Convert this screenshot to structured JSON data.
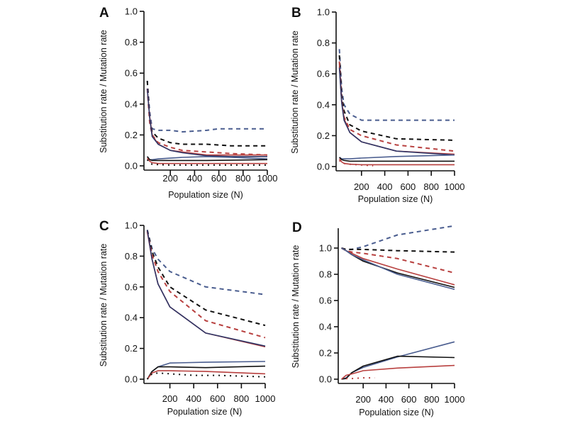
{
  "colors": {
    "blue": "#4a5d8f",
    "black": "#111111",
    "red": "#b8403f",
    "navy": "#2e3566"
  },
  "chart_data": [
    {
      "type": "line",
      "panel": "A",
      "xlabel": "Population size (N)",
      "ylabel": "Substitution rate / Mutation rate",
      "xlim": [
        0,
        1000
      ],
      "ylim": [
        0,
        1.0
      ],
      "xticks": [
        "200",
        "400",
        "600",
        "800",
        "1000"
      ],
      "yticks": [
        "0.0",
        "0.2",
        "0.4",
        "0.6",
        "0.8",
        "1.0"
      ],
      "series": [
        {
          "name": "blue-dashed",
          "color": "blue",
          "style": "dashed",
          "x": [
            10,
            30,
            50,
            100,
            200,
            300,
            500,
            600,
            1000
          ],
          "y": [
            0.55,
            0.35,
            0.24,
            0.23,
            0.23,
            0.22,
            0.23,
            0.24,
            0.24
          ]
        },
        {
          "name": "black-dashed",
          "color": "black",
          "style": "dashed",
          "x": [
            10,
            30,
            50,
            100,
            200,
            300,
            500,
            700,
            1000
          ],
          "y": [
            0.55,
            0.3,
            0.22,
            0.18,
            0.15,
            0.14,
            0.14,
            0.13,
            0.13
          ]
        },
        {
          "name": "red-dashed",
          "color": "red",
          "style": "dashed",
          "x": [
            10,
            30,
            50,
            100,
            200,
            300,
            500,
            700,
            1000
          ],
          "y": [
            0.5,
            0.28,
            0.2,
            0.15,
            0.12,
            0.1,
            0.09,
            0.08,
            0.07
          ]
        },
        {
          "name": "red-solid-upper",
          "color": "red",
          "style": "solid",
          "x": [
            10,
            30,
            50,
            100,
            200,
            300,
            500,
            700,
            1000
          ],
          "y": [
            0.5,
            0.32,
            0.2,
            0.14,
            0.1,
            0.09,
            0.07,
            0.07,
            0.07
          ]
        },
        {
          "name": "navy-solid-upper",
          "color": "navy",
          "style": "solid",
          "x": [
            10,
            30,
            50,
            100,
            200,
            300,
            500,
            700,
            1000
          ],
          "y": [
            0.5,
            0.31,
            0.19,
            0.14,
            0.1,
            0.085,
            0.065,
            0.06,
            0.06
          ]
        },
        {
          "name": "blue-solid-lower",
          "color": "blue",
          "style": "solid",
          "x": [
            10,
            30,
            50,
            100,
            200,
            300,
            500,
            700,
            1000
          ],
          "y": [
            0.06,
            0.04,
            0.04,
            0.045,
            0.05,
            0.055,
            0.06,
            0.055,
            0.045
          ]
        },
        {
          "name": "black-solid-lower",
          "color": "black",
          "style": "solid",
          "x": [
            10,
            30,
            50,
            100,
            200,
            500,
            1000
          ],
          "y": [
            0.06,
            0.04,
            0.035,
            0.035,
            0.035,
            0.035,
            0.04
          ]
        },
        {
          "name": "red-solid-lower",
          "color": "red",
          "style": "solid",
          "x": [
            10,
            30,
            50,
            100,
            200,
            500,
            1000
          ],
          "y": [
            0.05,
            0.03,
            0.02,
            0.015,
            0.015,
            0.015,
            0.015
          ]
        },
        {
          "name": "black-dotted",
          "color": "black",
          "style": "dotted",
          "x": [
            10,
            30,
            50,
            100,
            200,
            500,
            700,
            1000
          ],
          "y": [
            0.04,
            0.02,
            0.01,
            0.008,
            0.005,
            0.005,
            0.005,
            0.005
          ]
        }
      ]
    },
    {
      "type": "line",
      "panel": "B",
      "xlabel": "Population size (N)",
      "ylabel": "Substitution rate / Mutation rate",
      "xlim": [
        0,
        1000
      ],
      "ylim": [
        0,
        1.0
      ],
      "xticks": [
        "200",
        "400",
        "600",
        "800",
        "1000"
      ],
      "yticks": [
        "0.0",
        "0.2",
        "0.4",
        "0.6",
        "0.8",
        "1.0"
      ],
      "series": [
        {
          "name": "blue-dashed",
          "color": "blue",
          "style": "dashed",
          "x": [
            10,
            30,
            50,
            100,
            200,
            500,
            1000
          ],
          "y": [
            0.76,
            0.5,
            0.4,
            0.34,
            0.3,
            0.3,
            0.3
          ]
        },
        {
          "name": "black-dashed",
          "color": "black",
          "style": "dashed",
          "x": [
            10,
            30,
            50,
            100,
            200,
            500,
            1000
          ],
          "y": [
            0.72,
            0.46,
            0.36,
            0.27,
            0.23,
            0.18,
            0.17
          ]
        },
        {
          "name": "red-dashed",
          "color": "red",
          "style": "dashed",
          "x": [
            10,
            30,
            50,
            100,
            200,
            500,
            1000
          ],
          "y": [
            0.68,
            0.42,
            0.32,
            0.24,
            0.2,
            0.14,
            0.1
          ]
        },
        {
          "name": "red-solid-upper",
          "color": "red",
          "style": "solid",
          "x": [
            10,
            30,
            50,
            100,
            200,
            500,
            1000
          ],
          "y": [
            0.65,
            0.42,
            0.31,
            0.22,
            0.16,
            0.1,
            0.08
          ]
        },
        {
          "name": "navy-solid-upper",
          "color": "navy",
          "style": "solid",
          "x": [
            10,
            30,
            50,
            100,
            200,
            500,
            1000
          ],
          "y": [
            0.64,
            0.41,
            0.3,
            0.22,
            0.16,
            0.1,
            0.075
          ]
        },
        {
          "name": "blue-solid-lower",
          "color": "blue",
          "style": "solid",
          "x": [
            10,
            30,
            50,
            100,
            200,
            500,
            1000
          ],
          "y": [
            0.06,
            0.05,
            0.05,
            0.05,
            0.055,
            0.065,
            0.075
          ]
        },
        {
          "name": "black-solid-lower",
          "color": "black",
          "style": "solid",
          "x": [
            10,
            30,
            50,
            100,
            200,
            500,
            1000
          ],
          "y": [
            0.06,
            0.045,
            0.04,
            0.035,
            0.035,
            0.035,
            0.035
          ]
        },
        {
          "name": "red-solid-lower",
          "color": "red",
          "style": "solid",
          "x": [
            10,
            30,
            50,
            100,
            200,
            500,
            1000
          ],
          "y": [
            0.05,
            0.03,
            0.02,
            0.015,
            0.012,
            0.012,
            0.012
          ]
        },
        {
          "name": "red-dotted",
          "color": "red",
          "style": "dotted",
          "x": [
            10,
            30,
            50,
            100,
            200,
            300
          ],
          "y": [
            0.04,
            0.025,
            0.02,
            0.015,
            0.01,
            0.005
          ]
        }
      ]
    },
    {
      "type": "line",
      "panel": "C",
      "xlabel": "Population size (N)",
      "ylabel": "Substitution rate / Mutation rate",
      "xlim": [
        0,
        1000
      ],
      "ylim": [
        0,
        1.0
      ],
      "xticks": [
        "200",
        "400",
        "600",
        "800",
        "1000"
      ],
      "yticks": [
        "0.0",
        "0.2",
        "0.4",
        "0.6",
        "0.8",
        "1.0"
      ],
      "series": [
        {
          "name": "blue-dashed",
          "color": "blue",
          "style": "dashed",
          "x": [
            10,
            50,
            100,
            200,
            500,
            1000
          ],
          "y": [
            0.97,
            0.85,
            0.78,
            0.7,
            0.6,
            0.55
          ]
        },
        {
          "name": "black-dashed",
          "color": "black",
          "style": "dashed",
          "x": [
            10,
            50,
            100,
            200,
            500,
            1000
          ],
          "y": [
            0.97,
            0.83,
            0.73,
            0.6,
            0.45,
            0.35
          ]
        },
        {
          "name": "red-dashed",
          "color": "red",
          "style": "dashed",
          "x": [
            10,
            50,
            100,
            200,
            500,
            1000
          ],
          "y": [
            0.96,
            0.81,
            0.7,
            0.57,
            0.38,
            0.27
          ]
        },
        {
          "name": "red-solid-upper",
          "color": "red",
          "style": "solid",
          "x": [
            10,
            50,
            100,
            200,
            500,
            1000
          ],
          "y": [
            0.96,
            0.78,
            0.62,
            0.47,
            0.3,
            0.21
          ]
        },
        {
          "name": "navy-solid-upper",
          "color": "navy",
          "style": "solid",
          "x": [
            10,
            50,
            100,
            200,
            500,
            1000
          ],
          "y": [
            0.97,
            0.78,
            0.62,
            0.47,
            0.3,
            0.215
          ]
        },
        {
          "name": "blue-solid-lower",
          "color": "blue",
          "style": "solid",
          "x": [
            10,
            50,
            100,
            200,
            500,
            1000
          ],
          "y": [
            0.0,
            0.05,
            0.08,
            0.105,
            0.11,
            0.115
          ]
        },
        {
          "name": "black-solid-lower",
          "color": "black",
          "style": "solid",
          "x": [
            10,
            50,
            100,
            200,
            500,
            1000
          ],
          "y": [
            0.0,
            0.05,
            0.08,
            0.08,
            0.075,
            0.085
          ]
        },
        {
          "name": "red-solid-lower",
          "color": "red",
          "style": "solid",
          "x": [
            10,
            50,
            100,
            200,
            500,
            1000
          ],
          "y": [
            0.0,
            0.04,
            0.055,
            0.055,
            0.05,
            0.035
          ]
        },
        {
          "name": "black-dotted",
          "color": "black",
          "style": "dotted",
          "x": [
            10,
            50,
            100,
            200,
            400,
            600,
            1000
          ],
          "y": [
            0.0,
            0.035,
            0.04,
            0.035,
            0.025,
            0.025,
            0.015
          ]
        }
      ]
    },
    {
      "type": "line",
      "panel": "D",
      "xlabel": "Population size (N)",
      "ylabel": "Substitution rate / Mutation rate",
      "xlim": [
        0,
        1000
      ],
      "ylim": [
        0,
        1.2
      ],
      "xticks": [
        "200",
        "400",
        "600",
        "800",
        "1000"
      ],
      "yticks": [
        "0.0",
        "0.2",
        "0.4",
        "0.6",
        "0.8",
        "1.0"
      ],
      "series": [
        {
          "name": "blue-dashed",
          "color": "blue",
          "style": "dashed",
          "x": [
            10,
            50,
            100,
            200,
            500,
            1000
          ],
          "y": [
            1.0,
            0.99,
            0.99,
            1.01,
            1.1,
            1.17
          ]
        },
        {
          "name": "black-dashed",
          "color": "black",
          "style": "dashed",
          "x": [
            10,
            50,
            100,
            200,
            500,
            1000
          ],
          "y": [
            1.0,
            0.99,
            0.99,
            0.99,
            0.98,
            0.97
          ]
        },
        {
          "name": "red-dashed",
          "color": "red",
          "style": "dashed",
          "x": [
            10,
            50,
            100,
            200,
            500,
            1000
          ],
          "y": [
            1.0,
            0.98,
            0.97,
            0.96,
            0.92,
            0.81
          ]
        },
        {
          "name": "red-solid-upper",
          "color": "red",
          "style": "solid",
          "x": [
            10,
            50,
            100,
            200,
            500,
            1000
          ],
          "y": [
            1.0,
            0.98,
            0.96,
            0.92,
            0.84,
            0.72
          ]
        },
        {
          "name": "black-solid-upper",
          "color": "black",
          "style": "solid",
          "x": [
            10,
            50,
            100,
            200,
            500,
            1000
          ],
          "y": [
            1.0,
            0.98,
            0.95,
            0.9,
            0.81,
            0.7
          ]
        },
        {
          "name": "blue-solid-upper",
          "color": "blue",
          "style": "solid",
          "x": [
            10,
            50,
            100,
            200,
            500,
            1000
          ],
          "y": [
            1.0,
            0.98,
            0.95,
            0.91,
            0.8,
            0.685
          ]
        },
        {
          "name": "blue-solid-lower",
          "color": "blue",
          "style": "solid",
          "x": [
            10,
            50,
            100,
            200,
            500,
            1000
          ],
          "y": [
            0.0,
            0.01,
            0.05,
            0.09,
            0.17,
            0.285
          ]
        },
        {
          "name": "black-solid-lower",
          "color": "black",
          "style": "solid",
          "x": [
            10,
            50,
            100,
            200,
            500,
            1000
          ],
          "y": [
            0.0,
            0.005,
            0.05,
            0.1,
            0.175,
            0.165
          ]
        },
        {
          "name": "red-solid-lower",
          "color": "red",
          "style": "solid",
          "x": [
            10,
            50,
            100,
            200,
            500,
            1000
          ],
          "y": [
            0.0,
            0.03,
            0.04,
            0.065,
            0.085,
            0.105
          ]
        },
        {
          "name": "red-dotted",
          "color": "red",
          "style": "dotted",
          "x": [
            50,
            100,
            200,
            300
          ],
          "y": [
            0.005,
            0.005,
            0.01,
            0.01
          ]
        }
      ]
    }
  ]
}
